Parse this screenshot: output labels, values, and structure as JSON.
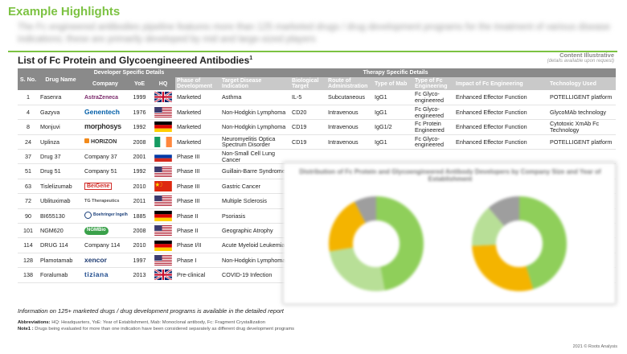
{
  "page": {
    "title": "Example Highlights",
    "summary": "The Fc engineered antibodies pipeline features more than 125 marketed drugs / drug development programs for the treatment of various disease indications; these are primarily developed by mid and large-sized players",
    "section_title": "List of Fc Protein and Glycoengineered Antibodies",
    "section_title_sup": "1",
    "illustrative_label": "Content Illustrative",
    "illustrative_sub": "(details available upon request)"
  },
  "table": {
    "headers": {
      "sno": "S. No.",
      "drug_name": "Drug Name",
      "developer_group": "Developer Specific Details",
      "therapy_group": "Therapy Specific Details",
      "company": "Company",
      "yoe": "YoE",
      "hq": "HQ",
      "phase": "Phase of Development",
      "indication": "Target Disease Indication",
      "target": "Biological Target",
      "route": "Route of Administration",
      "mab": "Type of Mab",
      "fc_type": "Type of Fc Engineering",
      "impact": "Impact of Fc Engineering",
      "tech": "Technology Used"
    },
    "rows": [
      {
        "sno": "1",
        "drug": "Fasenra",
        "company": "AstraZeneca",
        "logo": "astrazeneca",
        "yoe": "1999",
        "hq": "uk",
        "phase": "Marketed",
        "indication": "Asthma",
        "target": "IL-5",
        "route": "Subcutaneous",
        "mab": "IgG1",
        "fc_type": "Fc Glyco-engineered",
        "impact": "Enhanced Effector Function",
        "tech": "POTELLIGENT platform"
      },
      {
        "sno": "4",
        "drug": "Gazyva",
        "company": "Genentech",
        "logo": "genentech",
        "yoe": "1976",
        "hq": "us",
        "phase": "Marketed",
        "indication": "Non-Hodgkin Lymphoma",
        "target": "CD20",
        "route": "Intravenous",
        "mab": "IgG1",
        "fc_type": "Fc Glyco-engineered",
        "impact": "Enhanced Effector Function",
        "tech": "GlycoMAb technology"
      },
      {
        "sno": "8",
        "drug": "Monjuvi",
        "company": "morphosys",
        "logo": "morphosys",
        "yoe": "1992",
        "hq": "de",
        "phase": "Marketed",
        "indication": "Non-Hodgkin Lymphoma",
        "target": "CD19",
        "route": "Intravenous",
        "mab": "IgG1/2",
        "fc_type": "Fc Protein Engineered",
        "impact": "Enhanced Effector Function",
        "tech": "Cytotoxic XmAb Fc Technology"
      },
      {
        "sno": "24",
        "drug": "Uplinza",
        "company": "HORIZON",
        "logo": "horizon",
        "yoe": "2008",
        "hq": "ie",
        "phase": "Marketed",
        "indication": "Neuromyelitis Optica Spectrum Disorder",
        "target": "CD19",
        "route": "Intravenous",
        "mab": "IgG1",
        "fc_type": "Fc Glyco-engineered",
        "impact": "Enhanced Effector Function",
        "tech": "POTELLIGENT platform"
      },
      {
        "sno": "37",
        "drug": "Drug 37",
        "company": "Company 37",
        "logo": "",
        "yoe": "2001",
        "hq": "ru",
        "phase": "Phase III",
        "indication": "Non-Small Cell Lung Cancer",
        "target": "",
        "route": "",
        "mab": "",
        "fc_type": "",
        "impact": "",
        "tech": ""
      },
      {
        "sno": "51",
        "drug": "Drug 51",
        "company": "Company 51",
        "logo": "",
        "yoe": "1992",
        "hq": "us",
        "phase": "Phase III",
        "indication": "Guillain-Barre Syndrome",
        "target": "",
        "route": "",
        "mab": "",
        "fc_type": "",
        "impact": "",
        "tech": ""
      },
      {
        "sno": "63",
        "drug": "Tislelizumab",
        "company": "BeiGene",
        "logo": "beigene",
        "yoe": "2010",
        "hq": "cn",
        "phase": "Phase III",
        "indication": "Gastric Cancer",
        "target": "",
        "route": "",
        "mab": "",
        "fc_type": "",
        "impact": "",
        "tech": ""
      },
      {
        "sno": "72",
        "drug": "Ublituximab",
        "company": "TG Therapeutics",
        "logo": "tg",
        "yoe": "2011",
        "hq": "us",
        "phase": "Phase III",
        "indication": "Multiple Sclerosis",
        "target": "",
        "route": "",
        "mab": "",
        "fc_type": "",
        "impact": "",
        "tech": ""
      },
      {
        "sno": "90",
        "drug": "BI655130",
        "company": "Boehringer Ingelheim",
        "logo": "bi",
        "yoe": "1885",
        "hq": "de",
        "phase": "Phase II",
        "indication": "Psoriasis",
        "target": "",
        "route": "",
        "mab": "",
        "fc_type": "",
        "impact": "",
        "tech": ""
      },
      {
        "sno": "101",
        "drug": "NGM620",
        "company": "NGMBio",
        "logo": "ngm",
        "yoe": "2008",
        "hq": "us",
        "phase": "Phase II",
        "indication": "Geographic Atrophy",
        "target": "",
        "route": "",
        "mab": "",
        "fc_type": "",
        "impact": "",
        "tech": ""
      },
      {
        "sno": "114",
        "drug": "DRUG 114",
        "company": "Company 114",
        "logo": "",
        "yoe": "2010",
        "hq": "de",
        "phase": "Phase I/II",
        "indication": "Acute Myeloid Leukemia",
        "target": "",
        "route": "",
        "mab": "",
        "fc_type": "",
        "impact": "",
        "tech": ""
      },
      {
        "sno": "128",
        "drug": "Plamotamab",
        "company": "xencor",
        "logo": "xencor",
        "yoe": "1997",
        "hq": "us",
        "phase": "Phase I",
        "indication": "Non-Hodgkin Lymphoma",
        "target": "",
        "route": "",
        "mab": "",
        "fc_type": "",
        "impact": "",
        "tech": ""
      },
      {
        "sno": "138",
        "drug": "Foralumab",
        "company": "tiziana",
        "logo": "tiziana",
        "yoe": "2013",
        "hq": "uk",
        "phase": "Pre-clinical",
        "indication": "COVID-19 Infection",
        "target": "",
        "route": "",
        "mab": "",
        "fc_type": "",
        "impact": "",
        "tech": ""
      }
    ]
  },
  "blurred_chart": {
    "title": "Distribution of Fc Protein and Glycoengineered Antibody Developers by Company Size and Year of Establishment"
  },
  "footer": {
    "info": "Information on 125+ marketed drugs / drug development programs is available in the detailed report",
    "abbrev_label": "Abbreviations:",
    "abbrev_text": " HQ: Headquarters, YoE: Year of Establishment, Mab: Monoclonal antibody, Fc: Fragment Crystallization",
    "note_label": "Note1 :",
    "note_text": " Drugs being evaluated for more than one indication have been considered separately as different drug development programs",
    "copyright": "2021 © Roots Analysis"
  },
  "colors": {
    "accent_green": "#7cc242",
    "header_dark": "#8a8a8a",
    "header_light": "#c9c9c9"
  }
}
